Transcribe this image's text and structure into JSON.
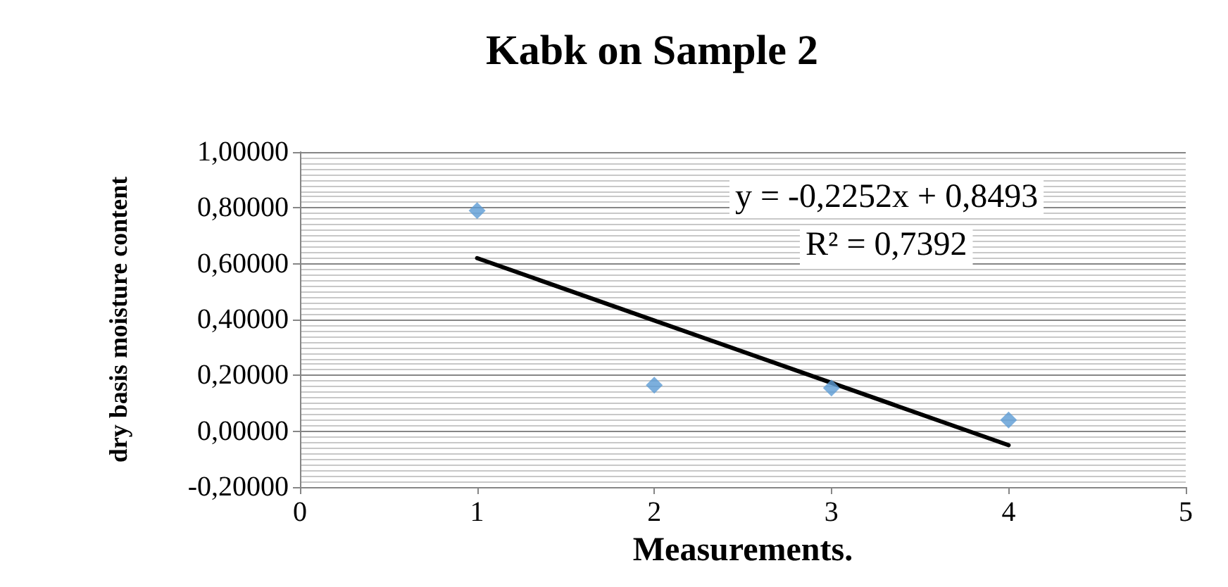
{
  "chart_data": {
    "type": "scatter",
    "title": "Kabk on Sample 2",
    "xlabel": "Measurements.",
    "ylabel": "dry basis moisture content",
    "x": [
      1,
      2,
      3,
      4
    ],
    "series": [
      {
        "color": "#5b9bd5",
        "values": [
          0.79,
          0.165,
          0.155,
          0.04
        ],
        "marker": "diamond"
      },
      {
        "type": "line",
        "color": "#000000",
        "x": [
          1,
          4
        ],
        "values": [
          0.62,
          -0.05
        ],
        "marker": "none",
        "line_style": "solid"
      }
    ],
    "xlim": [
      0,
      5
    ],
    "xticks": [
      0,
      1,
      2,
      3,
      4,
      5
    ],
    "ylim": [
      -0.2,
      1
    ],
    "yticks": [
      {
        "value": -0.2,
        "label": "-0,20000"
      },
      {
        "value": 0,
        "label": "0,00000"
      },
      {
        "value": 0.2,
        "label": "0,20000"
      },
      {
        "value": 0.4,
        "label": "0,40000"
      },
      {
        "value": 0.6,
        "label": "0,60000"
      },
      {
        "value": 0.8,
        "label": "0,80000"
      },
      {
        "value": 1,
        "label": "1,00000"
      }
    ],
    "grid": "y",
    "annotations": [
      "y = -0,2252x + 0,8493",
      "R² = 0,7392"
    ]
  }
}
